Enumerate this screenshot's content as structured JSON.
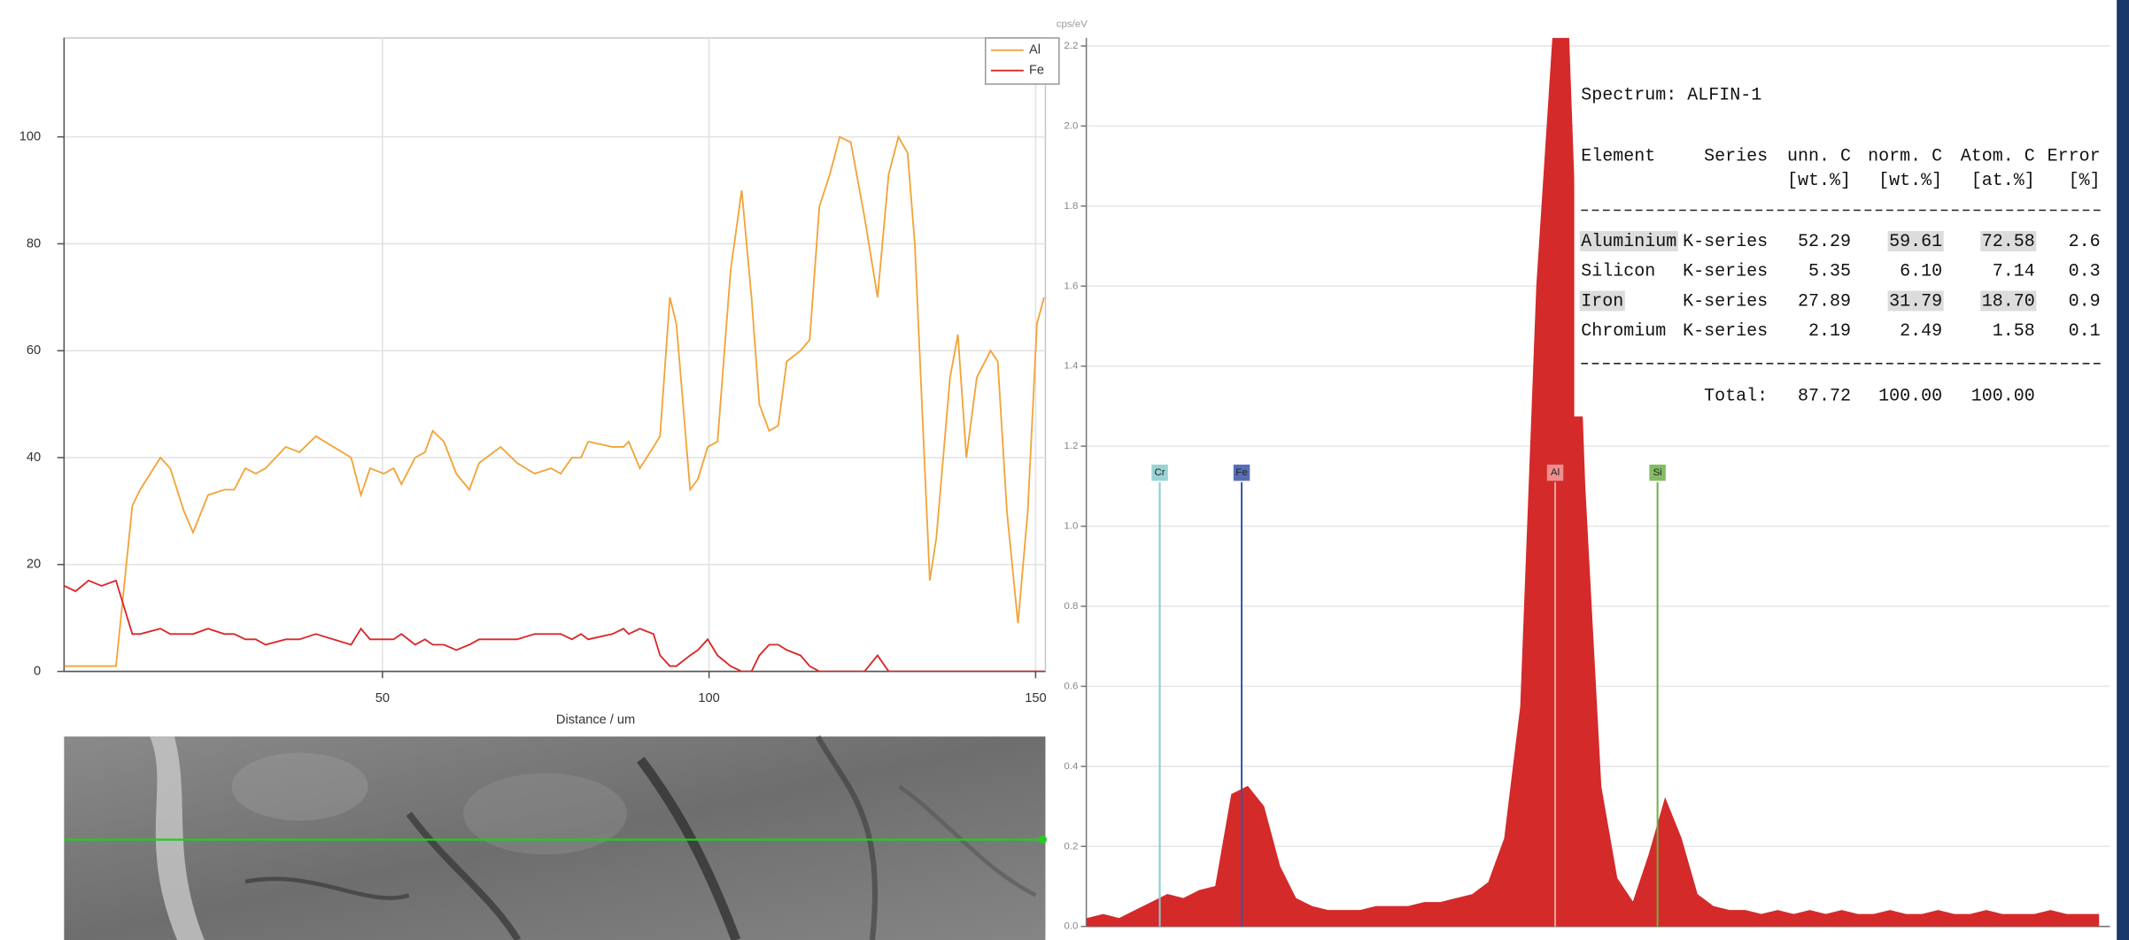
{
  "chart_data": [
    {
      "type": "line",
      "xlabel": "Distance / um",
      "x": [
        1.3,
        3,
        5,
        7,
        9.2,
        11.7,
        12.9,
        16,
        17.5,
        19.6,
        21,
        23.3,
        25.8,
        27.3,
        29,
        30.6,
        32.1,
        35.2,
        37.3,
        39.8,
        42.5,
        45.2,
        46.7,
        48.1,
        50.2,
        51.7,
        52.9,
        55,
        56.5,
        57.7,
        59.4,
        61.3,
        63.3,
        64.8,
        68.1,
        70.6,
        73.3,
        75.8,
        77.3,
        79,
        80.4,
        81.5,
        85.2,
        86.9,
        87.7,
        89.4,
        91.5,
        92.5,
        94,
        95,
        97.1,
        98.3,
        99.8,
        101.3,
        103.3,
        105,
        106.5,
        107.7,
        109.2,
        110.6,
        111.9,
        114,
        115.4,
        116.9,
        118.5,
        120,
        121.7,
        123.8,
        125.8,
        127.5,
        129,
        130.4,
        131.5,
        133.8,
        134.8,
        136.9,
        138.1,
        139.4,
        141,
        143.1,
        144.2,
        145.6,
        147.3,
        148.8,
        150.2,
        151.3
      ],
      "series": [
        {
          "name": "Al",
          "color": "#f2a43a",
          "values": [
            1,
            1,
            1,
            1,
            1,
            31,
            34,
            40,
            38,
            30,
            26,
            33,
            34,
            34,
            38,
            37,
            38,
            42,
            41,
            44,
            42,
            40,
            33,
            38,
            37,
            38,
            35,
            40,
            41,
            45,
            43,
            37,
            34,
            39,
            42,
            39,
            37,
            38,
            37,
            40,
            40,
            43,
            42,
            42,
            43,
            38,
            42,
            44,
            70,
            65,
            34,
            36,
            42,
            43,
            75,
            90,
            70,
            50,
            45,
            46,
            58,
            60,
            62,
            87,
            93,
            100,
            99,
            85,
            70,
            93,
            100,
            97,
            80,
            17,
            25,
            55,
            63,
            40,
            55,
            60,
            58,
            30,
            9,
            30,
            65,
            70
          ]
        },
        {
          "name": "Fe",
          "color": "#d8282a",
          "values": [
            16,
            15,
            17,
            16,
            17,
            7,
            7,
            8,
            7,
            7,
            7,
            8,
            7,
            7,
            6,
            6,
            5,
            6,
            6,
            7,
            6,
            5,
            8,
            6,
            6,
            6,
            7,
            5,
            6,
            5,
            5,
            4,
            5,
            6,
            6,
            6,
            7,
            7,
            7,
            6,
            7,
            6,
            7,
            8,
            7,
            8,
            7,
            3,
            1,
            1,
            3,
            4,
            6,
            3,
            1,
            0,
            0,
            3,
            5,
            5,
            4,
            3,
            1,
            0,
            0,
            0,
            0,
            0,
            3,
            0,
            0,
            0,
            0,
            0,
            0,
            0,
            0,
            0,
            0,
            0,
            0,
            0,
            0,
            0,
            0,
            0
          ]
        }
      ],
      "xlim": [
        1.25,
        151.5
      ],
      "xticks": [
        50,
        100,
        150
      ],
      "ylim": [
        0,
        118.5
      ],
      "yticks": [
        0,
        20,
        40,
        60,
        80,
        100
      ],
      "grid": true,
      "legend": "top-right"
    },
    {
      "type": "area",
      "ylabel": "cps/eV",
      "color": "#d42a2a",
      "x": [
        0.32,
        0.36,
        0.4,
        0.44,
        0.48,
        0.52,
        0.56,
        0.6,
        0.64,
        0.68,
        0.72,
        0.76,
        0.8,
        0.84,
        0.88,
        0.92,
        0.96,
        1.0,
        1.04,
        1.08,
        1.12,
        1.16,
        1.2,
        1.24,
        1.28,
        1.32,
        1.36,
        1.4,
        1.44,
        1.48,
        1.52,
        1.56,
        1.6,
        1.64,
        1.68,
        1.72,
        1.76,
        1.8,
        1.84,
        1.88,
        1.92,
        1.96,
        2.0,
        2.04,
        2.08,
        2.12,
        2.16,
        2.2,
        2.24,
        2.28,
        2.32,
        2.36,
        2.4,
        2.44,
        2.48,
        2.52,
        2.56,
        2.6,
        2.64,
        2.68,
        2.72,
        2.76,
        2.8,
        2.84
      ],
      "values": [
        0.02,
        0.03,
        0.02,
        0.04,
        0.06,
        0.08,
        0.07,
        0.09,
        0.1,
        0.33,
        0.35,
        0.3,
        0.15,
        0.07,
        0.05,
        0.04,
        0.04,
        0.04,
        0.05,
        0.05,
        0.05,
        0.06,
        0.06,
        0.07,
        0.08,
        0.11,
        0.22,
        0.55,
        1.6,
        2.22,
        2.22,
        1.1,
        0.35,
        0.12,
        0.06,
        0.18,
        0.32,
        0.22,
        0.08,
        0.05,
        0.04,
        0.04,
        0.03,
        0.04,
        0.03,
        0.04,
        0.03,
        0.04,
        0.03,
        0.03,
        0.04,
        0.03,
        0.03,
        0.04,
        0.03,
        0.03,
        0.04,
        0.03,
        0.03,
        0.03,
        0.04,
        0.03,
        0.03,
        0.03
      ],
      "xlim": [
        0.318,
        2.868
      ],
      "ylim": [
        0,
        2.22
      ],
      "yticks": [
        {
          "value": 0,
          "label": "0.0"
        },
        0.2,
        0.4,
        0.6,
        0.8,
        {
          "value": 1,
          "label": "1.0"
        },
        1.2,
        1.4,
        1.6,
        1.8,
        {
          "value": 2,
          "label": "2.0"
        },
        2.2
      ],
      "grid": true,
      "markers": [
        {
          "label": "Cr",
          "x": 0.501,
          "y": 1.11,
          "color": "#86cccc"
        },
        {
          "label": "Fe",
          "x": 0.705,
          "y": 1.11,
          "color": "#3a55a8"
        },
        {
          "label": "Al",
          "x": 1.486,
          "y": 1.11,
          "color": "#f2a0a0"
        },
        {
          "label": "Si",
          "x": 1.741,
          "y": 1.11,
          "color": "#70b048"
        }
      ]
    }
  ],
  "table": {
    "title": "Spectrum: ALFIN-1",
    "columns": [
      "Element",
      "Series",
      "unn. C",
      "norm. C",
      "Atom. C",
      "Error"
    ],
    "units": [
      "[wt.%]",
      "[wt.%]",
      "[at.%]",
      "[%]"
    ],
    "rows": [
      [
        "Aluminium",
        "K-series",
        "52.29",
        "59.61",
        "72.58",
        "2.6"
      ],
      [
        "Silicon",
        "K-series",
        "5.35",
        "6.10",
        "7.14",
        "0.3"
      ],
      [
        "Iron",
        "K-series",
        "27.89",
        "31.79",
        "18.70",
        "0.9"
      ],
      [
        "Chromium",
        "K-series",
        "2.19",
        "2.49",
        "1.58",
        "0.1"
      ]
    ],
    "total_label": "Total:",
    "total": [
      "87.72",
      "100.00",
      "100.00"
    ]
  }
}
